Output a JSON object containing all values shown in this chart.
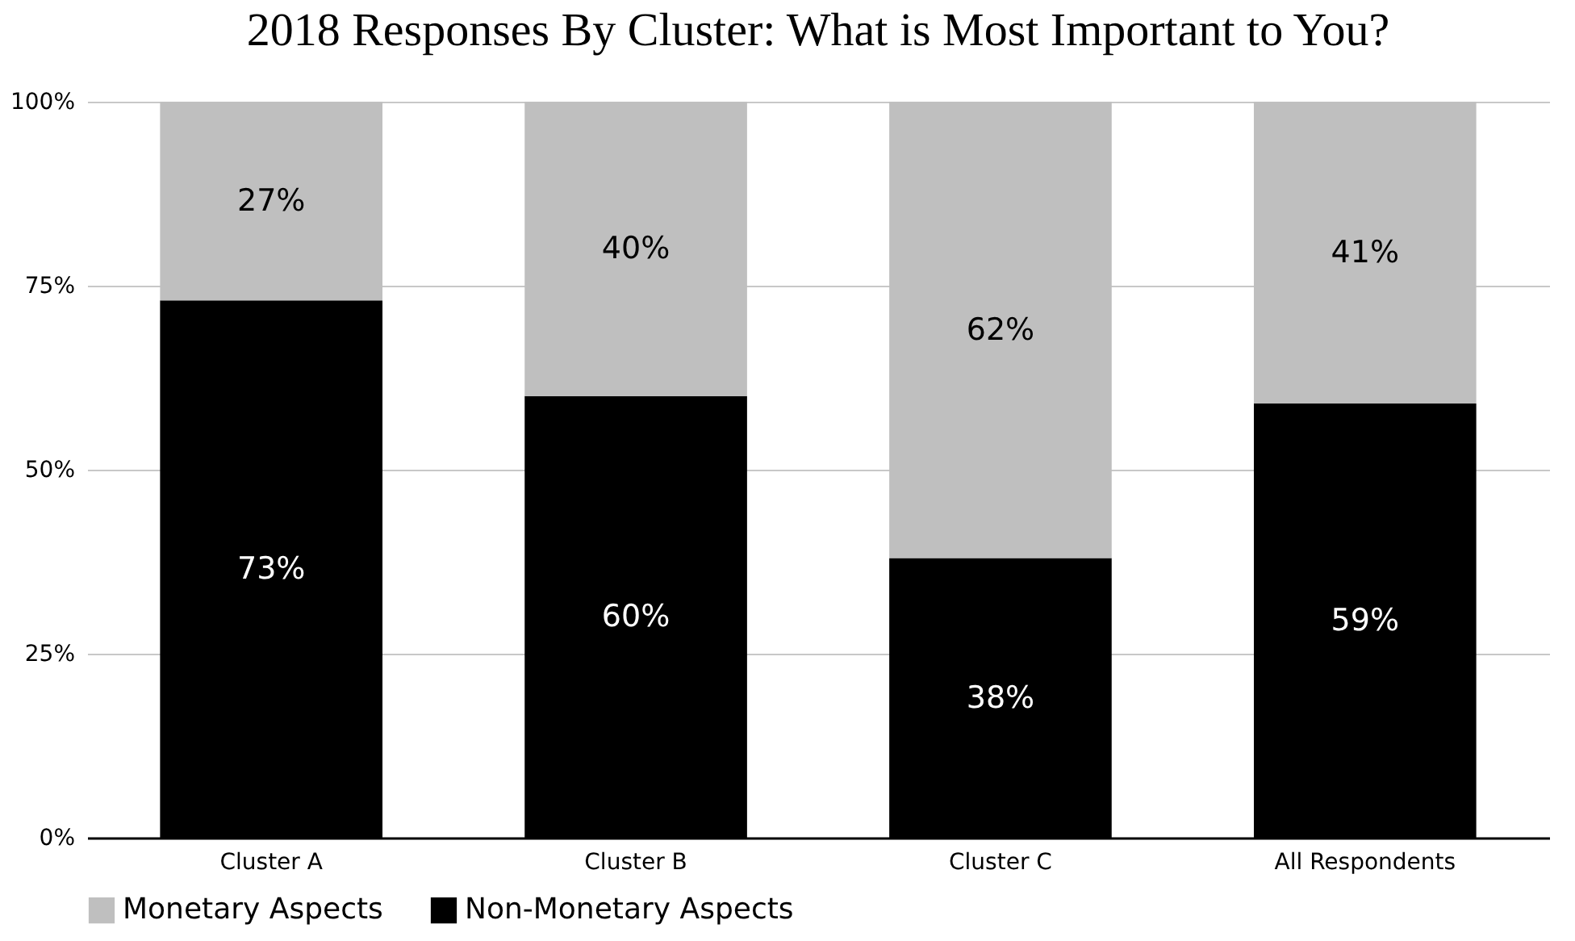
{
  "chart_data": {
    "type": "bar",
    "title": "2018 Responses By Cluster: What is Most Important to You?",
    "categories": [
      "Cluster A",
      "Cluster B",
      "Cluster C",
      "All Respondents"
    ],
    "stacked": true,
    "series": [
      {
        "name": "Non-Monetary Aspects",
        "color": "#000000",
        "values": [
          73,
          60,
          38,
          59
        ],
        "value_labels": [
          "73%",
          "60%",
          "38%",
          "59%"
        ]
      },
      {
        "name": "Monetary Aspects",
        "color": "#bfbfbf",
        "values": [
          27,
          40,
          62,
          41
        ],
        "value_labels": [
          "27%",
          "40%",
          "62%",
          "41%"
        ]
      }
    ],
    "ylim": [
      0,
      100
    ],
    "yticks": [
      {
        "value": 0,
        "label": "0%"
      },
      {
        "value": 25,
        "label": "25%"
      },
      {
        "value": 50,
        "label": "50%"
      },
      {
        "value": 75,
        "label": "75%"
      },
      {
        "value": 100,
        "label": "100%"
      }
    ],
    "grid": "y",
    "legend": "bottom"
  }
}
